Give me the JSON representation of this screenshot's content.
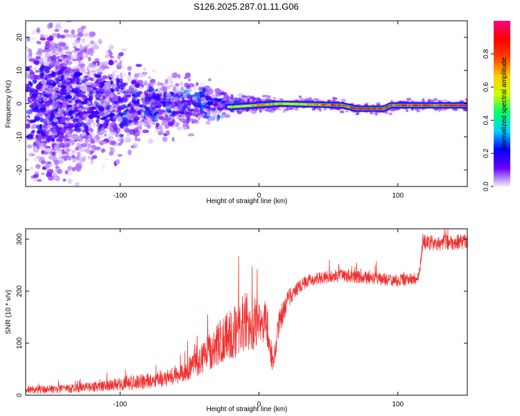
{
  "title": "S126.2025.287.01.11.G06",
  "chart_data": [
    {
      "type": "heatmap",
      "name": "spectrogram",
      "xlabel": "Height of straight line (km)",
      "ylabel": "Frequency (Hz)",
      "xlim": [
        -168,
        150
      ],
      "ylim": [
        -25,
        25
      ],
      "xticks": [
        -100,
        0,
        100
      ],
      "yticks": [
        -20,
        -10,
        0,
        10,
        20
      ],
      "colorbar": {
        "label": "Normalized spectral amplitude",
        "range": [
          0,
          1
        ],
        "ticks": [
          0.0,
          0.2,
          0.4,
          0.6,
          0.8
        ],
        "tick_labels": [
          "0.0",
          "0.2",
          "0.4",
          "0.6",
          "0.8"
        ],
        "colors": [
          "#f2eefc",
          "#6a00ff",
          "#0000ff",
          "#00d2ff",
          "#00ff70",
          "#ccff00",
          "#ffcc00",
          "#ff4000",
          "#ff0000",
          "#ff0080"
        ]
      },
      "scatter_spread_hz": [
        {
          "x": -160,
          "spread": 25
        },
        {
          "x": -100,
          "spread": 14
        },
        {
          "x": -80,
          "spread": 9
        },
        {
          "x": -40,
          "spread": 6
        },
        {
          "x": -20,
          "spread": 2
        },
        {
          "x": 150,
          "spread": 1.5
        }
      ],
      "tone_line": [
        {
          "x": -20,
          "y": -1.0
        },
        {
          "x": 15,
          "y": 0.0
        },
        {
          "x": 60,
          "y": -0.5
        },
        {
          "x": 70,
          "y": -1.5
        },
        {
          "x": 90,
          "y": -1.5
        },
        {
          "x": 95,
          "y": -0.5
        },
        {
          "x": 110,
          "y": -0.5
        },
        {
          "x": 150,
          "y": -0.5
        }
      ],
      "tone_amplitude": [
        {
          "x": -20,
          "amp": 0.55
        },
        {
          "x": 0,
          "amp": 0.7
        },
        {
          "x": 30,
          "amp": 0.6
        },
        {
          "x": 50,
          "amp": 0.8
        },
        {
          "x": 80,
          "amp": 0.85
        },
        {
          "x": 110,
          "amp": 0.8
        },
        {
          "x": 150,
          "amp": 0.9
        }
      ]
    },
    {
      "type": "line",
      "name": "snr",
      "xlabel": "Height of straight line (km)",
      "ylabel": "SNR (10 * v/v)",
      "xlim": [
        -168,
        150
      ],
      "ylim": [
        0,
        320
      ],
      "xticks": [
        -100,
        0,
        100
      ],
      "yticks": [
        0,
        100,
        200,
        300
      ],
      "color": "#f03030",
      "x": [
        -168,
        -140,
        -110,
        -90,
        -70,
        -55,
        -45,
        -35,
        -25,
        -15,
        -10,
        -5,
        0,
        5,
        10,
        15,
        20,
        25,
        35,
        50,
        60,
        80,
        100,
        115,
        118,
        130,
        150
      ],
      "values": [
        10,
        12,
        18,
        25,
        30,
        45,
        60,
        85,
        110,
        125,
        140,
        130,
        135,
        150,
        60,
        140,
        180,
        200,
        220,
        228,
        230,
        225,
        220,
        225,
        295,
        292,
        295
      ],
      "noise": [
        8,
        8,
        10,
        15,
        15,
        20,
        25,
        35,
        45,
        55,
        60,
        45,
        50,
        45,
        20,
        30,
        20,
        15,
        12,
        12,
        12,
        12,
        12,
        12,
        15,
        15,
        15
      ]
    }
  ]
}
